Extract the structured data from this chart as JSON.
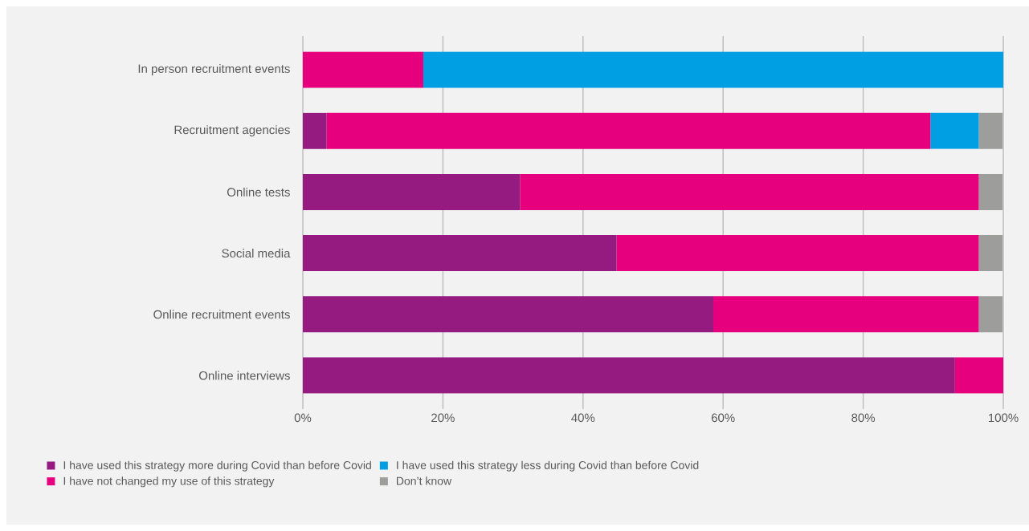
{
  "chart_data": {
    "type": "bar",
    "orientation": "horizontal",
    "stacked": true,
    "categories": [
      "In person recruitment events",
      "Recruitment agencies",
      "Online tests",
      "Social media",
      "Online recruitment events",
      "Online interviews"
    ],
    "series": [
      {
        "name": "I have used this strategy more during Covid than before Covid",
        "color": "#951b81",
        "values": [
          0,
          3.4,
          31.0,
          44.8,
          58.6,
          93.1
        ]
      },
      {
        "name": "I have not changed my use of this strategy",
        "color": "#e6007e",
        "values": [
          17.2,
          86.2,
          65.5,
          51.7,
          37.9,
          6.9
        ]
      },
      {
        "name": "I have used this strategy less during Covid than before Covid",
        "color": "#009fe3",
        "values": [
          82.8,
          6.9,
          0,
          0,
          0,
          0
        ]
      },
      {
        "name": "Don’t know",
        "color": "#9d9d9c",
        "values": [
          0,
          3.4,
          3.4,
          3.4,
          3.4,
          0
        ]
      }
    ],
    "xlim": [
      0,
      100
    ],
    "xticks": [
      {
        "value": 0,
        "label": "0%"
      },
      {
        "value": 20,
        "label": "20%"
      },
      {
        "value": 40,
        "label": "40%"
      },
      {
        "value": 60,
        "label": "60%"
      },
      {
        "value": 80,
        "label": "80%"
      },
      {
        "value": 100,
        "label": "100%"
      }
    ],
    "grid": "x",
    "legend": "bottom"
  }
}
